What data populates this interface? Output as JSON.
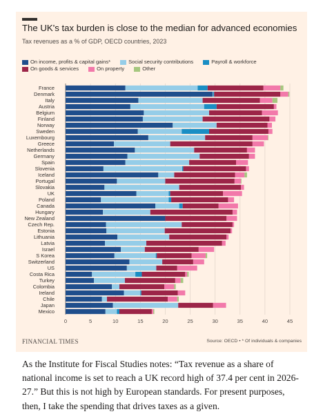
{
  "title": "The UK's tax burden is close to the median for advanced economies",
  "subtitle": "Tax revenues as a % of GDP, OECD countries, 2023",
  "footer": {
    "logo": "FINANCIAL TIMES",
    "source": "Source: OECD • * Of individuals & companies"
  },
  "paragraph": "As the Institute for Fiscal Studies notes: “Tax revenue as a share of national income is set to reach a UK record high of 37.4 per cent in 2026-27.” But this is not high by European standards. For present purposes, then, I take the spending that drives taxes as a given.",
  "chart_data": {
    "type": "bar",
    "orientation": "horizontal",
    "stacked": true,
    "xlim": [
      0,
      45
    ],
    "xticks": [
      "0",
      "5",
      "10",
      "15",
      "20",
      "25",
      "30",
      "35",
      "40",
      "45"
    ],
    "grid": true,
    "legend_position": "top",
    "categories": [
      "France",
      "Denmark",
      "Italy",
      "Austria",
      "Belgium",
      "Finland",
      "Norway",
      "Sweden",
      "Luxembourg",
      "Greece",
      "Netherlands",
      "Germany",
      "Spain",
      "Slovenia",
      "Iceland",
      "Portugal",
      "Slovakia",
      "UK",
      "Poland",
      "Canada",
      "Hungary",
      "New Zealand",
      "Czech Rep.",
      "Estonia",
      "Lithuania",
      "Latvia",
      "Israel",
      "S Korea",
      "Switzerland",
      "US",
      "Costa Rica",
      "Turkey",
      "Colombia",
      "Ireland",
      "Chile",
      "Japan",
      "Mexico"
    ],
    "series": [
      {
        "name": "On income, profits & capital gains*",
        "color": "#1f4e8c",
        "values": [
          12,
          29.5,
          14.6,
          13,
          15.7,
          15.5,
          21.5,
          14.5,
          16.6,
          9.7,
          13.9,
          12.4,
          12,
          7.6,
          18.6,
          10.3,
          7.8,
          14.2,
          7.1,
          18,
          7.5,
          20,
          8.1,
          8.2,
          10.4,
          7.9,
          11.1,
          9.8,
          12.8,
          12.3,
          5.3,
          5.7,
          9.3,
          11.7,
          7.3,
          9.5,
          8
        ]
      },
      {
        "name": "Social security contributions",
        "color": "#95cde8",
        "values": [
          14.5,
          0.1,
          12.9,
          14.8,
          13.1,
          12,
          8.8,
          8.8,
          11.4,
          11.3,
          11.9,
          14.5,
          12.8,
          15.8,
          3.2,
          9.7,
          15,
          6.5,
          13.6,
          4.8,
          9.5,
          0,
          15.2,
          11.7,
          10.4,
          8.3,
          4.8,
          8.3,
          6.6,
          5.9,
          8.7,
          6.2,
          1.5,
          3.3,
          1,
          13.1,
          2.3
        ]
      },
      {
        "name": "Payroll & workforce",
        "color": "#1a8ec4",
        "values": [
          2,
          0.2,
          0,
          2.5,
          0,
          0,
          0,
          5.5,
          0,
          0,
          0,
          0,
          0,
          0.2,
          0,
          0,
          0,
          0.3,
          0.5,
          0.7,
          0,
          0,
          0,
          0,
          0,
          0,
          0,
          0.2,
          0,
          0,
          1.3,
          0,
          0,
          0.2,
          0,
          0,
          0.5
        ]
      },
      {
        "name": "On goods & services",
        "color": "#9c2548",
        "values": [
          11.2,
          13.3,
          11.5,
          11.5,
          10.6,
          13.4,
          10.2,
          11.9,
          9.5,
          16.5,
          10.6,
          9.9,
          9.4,
          12.6,
          12.2,
          13.9,
          12.4,
          10.6,
          11.4,
          7.2,
          16.5,
          12.3,
          10.2,
          13.2,
          11.5,
          15.2,
          10.8,
          7,
          6.2,
          4.2,
          8.7,
          10.1,
          9,
          7.3,
          12.2,
          7,
          6.5
        ]
      },
      {
        "name": "On property",
        "color": "#f279aa",
        "values": [
          3.4,
          1.6,
          2.5,
          0.5,
          3.2,
          1.2,
          0.9,
          0.8,
          3.1,
          2.3,
          1.6,
          1.2,
          2.4,
          0.6,
          1.9,
          1.3,
          0.6,
          3.8,
          1.2,
          3.9,
          0.9,
          2.1,
          0.3,
          0.3,
          0.4,
          0.7,
          3.1,
          2.8,
          2.2,
          4,
          0.4,
          1.1,
          2,
          1.5,
          1.9,
          2.6,
          0.3
        ]
      },
      {
        "name": "Other",
        "color": "#a6c77f",
        "values": [
          0.6,
          0.2,
          1,
          0,
          0,
          0,
          0,
          0,
          0.1,
          0,
          0,
          0,
          0,
          0,
          0.5,
          0.1,
          0,
          0,
          0,
          0,
          0,
          0,
          0,
          0,
          0,
          0,
          0,
          0.3,
          0,
          0,
          0.3,
          0.5,
          0.3,
          0,
          0.3,
          0,
          0.2
        ]
      }
    ]
  }
}
